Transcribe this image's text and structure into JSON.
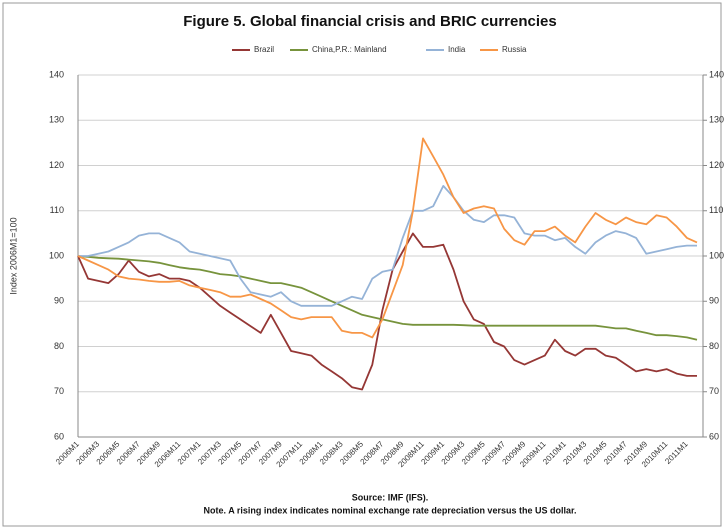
{
  "chart_data": {
    "type": "line",
    "title": "Figure 5. Global financial crisis and BRIC currencies",
    "y_label": "Index 2006M1=100",
    "source": "Source: IMF (IFS).",
    "note": "Note. A rising index indicates nominal exchange rate depreciation versus the US dollar.",
    "categories": [
      "2006M1",
      null,
      "2006M3",
      null,
      "2006M5",
      null,
      "2006M7",
      null,
      "2006M9",
      null,
      "2006M11",
      null,
      "2007M1",
      null,
      "2007M3",
      null,
      "2007M5",
      null,
      "2007M7",
      null,
      "2007M9",
      null,
      "2007M11",
      null,
      "2008M1",
      null,
      "2008M3",
      null,
      "2008M5",
      null,
      "2008M7",
      null,
      "2008M9",
      null,
      "2008M11",
      null,
      "2009M1",
      null,
      "2009M3",
      null,
      "2009M5",
      null,
      "2009M7",
      null,
      "2009M9",
      null,
      "2009M11",
      null,
      "2010M1",
      null,
      "2010M3",
      null,
      "2010M5",
      null,
      "2010M7",
      null,
      "2010M9",
      null,
      "2010M11",
      null,
      "2011M1",
      null
    ],
    "series": [
      {
        "name": "Brazil",
        "color": "#953735",
        "values": [
          100,
          95,
          94.5,
          94,
          96,
          99,
          96.5,
          95.5,
          96,
          95,
          95,
          94.5,
          93,
          91,
          89,
          87.5,
          86,
          84.5,
          83,
          87,
          83,
          79,
          78.5,
          78,
          76,
          74.5,
          73,
          71,
          70.5,
          76,
          88,
          97,
          101,
          105,
          102,
          102,
          102.5,
          97,
          90,
          86,
          85,
          81,
          80,
          77,
          76,
          77,
          78,
          81.5,
          79,
          78,
          79.5,
          79.5,
          78,
          77.5,
          76,
          74.5,
          75,
          74.5,
          75,
          74,
          73.5,
          73.5
        ]
      },
      {
        "name": "China,P.R.: Mainland",
        "color": "#77933c",
        "values": [
          100,
          99.8,
          99.6,
          99.5,
          99.4,
          99.2,
          99,
          98.8,
          98.5,
          98,
          97.5,
          97.2,
          97,
          96.5,
          96,
          95.8,
          95.5,
          95,
          94.5,
          94,
          94,
          93.5,
          93,
          92,
          91,
          90,
          89,
          88,
          87,
          86.5,
          86,
          85.5,
          85,
          84.8,
          84.8,
          84.8,
          84.8,
          84.8,
          84.7,
          84.6,
          84.6,
          84.6,
          84.6,
          84.6,
          84.6,
          84.6,
          84.6,
          84.6,
          84.6,
          84.6,
          84.6,
          84.6,
          84.3,
          84,
          84,
          83.5,
          83,
          82.5,
          82.5,
          82.3,
          82,
          81.5
        ]
      },
      {
        "name": "India",
        "color": "#95b3d7",
        "values": [
          100,
          100,
          100.5,
          101,
          102,
          103,
          104.5,
          105,
          105,
          104,
          103,
          101,
          100.5,
          100,
          99.5,
          99,
          95,
          92,
          91.5,
          91,
          92,
          90,
          89,
          89,
          89,
          89,
          90,
          91,
          90.5,
          95,
          96.5,
          97,
          104,
          110,
          110,
          111,
          115.5,
          113,
          110,
          108,
          107.5,
          109,
          109,
          108.5,
          105,
          104.5,
          104.5,
          103.5,
          104,
          102,
          100.5,
          103,
          104.5,
          105.5,
          105,
          104,
          100.5,
          101,
          101.5,
          102,
          102.3,
          102.3
        ]
      },
      {
        "name": "Russia",
        "color": "#f79646",
        "values": [
          100,
          99,
          98,
          97,
          95.5,
          95,
          94.8,
          94.5,
          94.3,
          94.3,
          94.5,
          93.5,
          93,
          92.5,
          92,
          91,
          91,
          91.5,
          90.5,
          89.5,
          88,
          86.5,
          86,
          86.5,
          86.5,
          86.5,
          83.5,
          83,
          83,
          82,
          86,
          92,
          98,
          110,
          126,
          122,
          118,
          113,
          109.5,
          110.5,
          111,
          110.5,
          106,
          103.5,
          102.5,
          105.5,
          105.5,
          106.5,
          104.5,
          103,
          106.5,
          109.5,
          108,
          107,
          108.5,
          107.5,
          107,
          109,
          108.5,
          106.5,
          104,
          103
        ]
      }
    ],
    "ylim": [
      60,
      140
    ],
    "yticks": [
      60,
      70,
      80,
      90,
      100,
      110,
      120,
      130,
      140
    ],
    "y2lim": [
      60,
      140
    ],
    "y2ticks": [
      60,
      70,
      80,
      90,
      100,
      110,
      120,
      130,
      140
    ],
    "grid": true,
    "legend": "top"
  }
}
